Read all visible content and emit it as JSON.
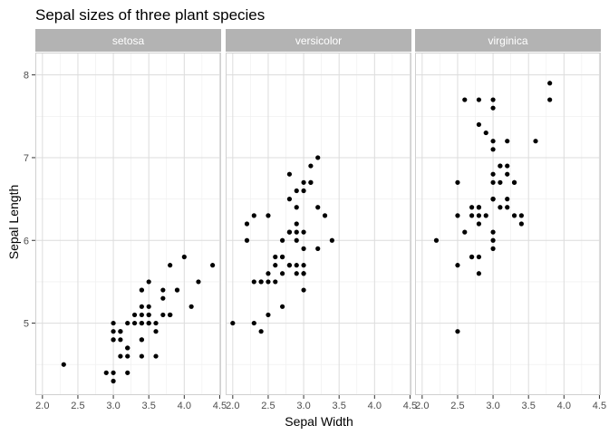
{
  "chart_data": {
    "type": "scatter",
    "title": "Sepal sizes of three plant species",
    "xlabel": "Sepal Width",
    "ylabel": "Sepal Length",
    "xlim": [
      1.9,
      4.52
    ],
    "ylim": [
      4.13,
      8.27
    ],
    "x_ticks": [
      {
        "value": 2.0,
        "label": "2.0"
      },
      {
        "value": 2.5,
        "label": "2.5"
      },
      {
        "value": 3.0,
        "label": "3.0"
      },
      {
        "value": 3.5,
        "label": "3.5"
      },
      {
        "value": 4.0,
        "label": "4.0"
      },
      {
        "value": 4.5,
        "label": "4.5"
      }
    ],
    "y_ticks": [
      {
        "value": 5,
        "label": "5"
      },
      {
        "value": 6,
        "label": "6"
      },
      {
        "value": 7,
        "label": "7"
      },
      {
        "value": 8,
        "label": "8"
      }
    ],
    "grid": true,
    "point_color": "#000000",
    "panel_border_color": "#d0d0d0",
    "grid_major_color": "#dcdcdc",
    "grid_minor_color": "#eeeeee",
    "strip_color": "#b3b3b3",
    "panels": [
      {
        "name": "setosa",
        "points": [
          [
            3.5,
            5.1
          ],
          [
            3.0,
            4.9
          ],
          [
            3.2,
            4.7
          ],
          [
            3.1,
            4.6
          ],
          [
            3.6,
            5.0
          ],
          [
            3.9,
            5.4
          ],
          [
            3.4,
            4.6
          ],
          [
            3.4,
            5.0
          ],
          [
            2.9,
            4.4
          ],
          [
            3.1,
            4.9
          ],
          [
            3.7,
            5.4
          ],
          [
            3.4,
            4.8
          ],
          [
            3.0,
            4.8
          ],
          [
            3.0,
            4.3
          ],
          [
            4.0,
            5.8
          ],
          [
            4.4,
            5.7
          ],
          [
            3.9,
            5.4
          ],
          [
            3.5,
            5.1
          ],
          [
            3.8,
            5.7
          ],
          [
            3.8,
            5.1
          ],
          [
            3.4,
            5.4
          ],
          [
            3.7,
            5.1
          ],
          [
            3.6,
            4.6
          ],
          [
            3.3,
            5.1
          ],
          [
            3.4,
            4.8
          ],
          [
            3.0,
            5.0
          ],
          [
            3.4,
            5.0
          ],
          [
            3.5,
            5.2
          ],
          [
            3.4,
            5.2
          ],
          [
            3.2,
            4.7
          ],
          [
            3.1,
            4.8
          ],
          [
            3.4,
            5.4
          ],
          [
            4.1,
            5.2
          ],
          [
            4.2,
            5.5
          ],
          [
            3.1,
            4.9
          ],
          [
            3.2,
            5.0
          ],
          [
            3.5,
            5.5
          ],
          [
            3.6,
            4.9
          ],
          [
            3.0,
            4.4
          ],
          [
            3.4,
            5.1
          ],
          [
            3.5,
            5.0
          ],
          [
            2.3,
            4.5
          ],
          [
            3.2,
            4.4
          ],
          [
            3.5,
            5.0
          ],
          [
            3.8,
            5.1
          ],
          [
            3.0,
            4.8
          ],
          [
            3.8,
            5.1
          ],
          [
            3.2,
            4.6
          ],
          [
            3.7,
            5.3
          ],
          [
            3.3,
            5.0
          ]
        ]
      },
      {
        "name": "versicolor",
        "points": [
          [
            3.2,
            7.0
          ],
          [
            3.2,
            6.4
          ],
          [
            3.1,
            6.9
          ],
          [
            2.3,
            5.5
          ],
          [
            2.8,
            6.5
          ],
          [
            2.8,
            5.7
          ],
          [
            3.3,
            6.3
          ],
          [
            2.4,
            4.9
          ],
          [
            2.9,
            6.6
          ],
          [
            2.7,
            5.2
          ],
          [
            2.0,
            5.0
          ],
          [
            3.0,
            5.9
          ],
          [
            2.2,
            6.0
          ],
          [
            2.9,
            6.1
          ],
          [
            2.9,
            5.6
          ],
          [
            3.1,
            6.7
          ],
          [
            3.0,
            5.6
          ],
          [
            2.7,
            5.8
          ],
          [
            2.2,
            6.2
          ],
          [
            2.5,
            5.6
          ],
          [
            3.2,
            5.9
          ],
          [
            2.8,
            6.1
          ],
          [
            2.5,
            6.3
          ],
          [
            2.8,
            6.1
          ],
          [
            2.9,
            6.4
          ],
          [
            3.0,
            6.6
          ],
          [
            2.8,
            6.8
          ],
          [
            3.0,
            6.7
          ],
          [
            2.9,
            6.0
          ],
          [
            2.6,
            5.7
          ],
          [
            2.4,
            5.5
          ],
          [
            2.4,
            5.5
          ],
          [
            2.7,
            5.8
          ],
          [
            2.7,
            6.0
          ],
          [
            3.0,
            5.4
          ],
          [
            3.4,
            6.0
          ],
          [
            3.1,
            6.7
          ],
          [
            2.3,
            6.3
          ],
          [
            3.0,
            5.6
          ],
          [
            2.5,
            5.5
          ],
          [
            2.6,
            5.5
          ],
          [
            3.0,
            6.1
          ],
          [
            2.6,
            5.8
          ],
          [
            2.3,
            5.0
          ],
          [
            2.7,
            5.6
          ],
          [
            3.0,
            5.7
          ],
          [
            2.9,
            5.7
          ],
          [
            2.9,
            6.2
          ],
          [
            2.5,
            5.1
          ],
          [
            2.8,
            5.7
          ]
        ]
      },
      {
        "name": "virginica",
        "points": [
          [
            3.3,
            6.3
          ],
          [
            2.7,
            5.8
          ],
          [
            3.0,
            7.1
          ],
          [
            2.9,
            6.3
          ],
          [
            3.0,
            6.5
          ],
          [
            3.0,
            7.6
          ],
          [
            2.5,
            4.9
          ],
          [
            2.9,
            7.3
          ],
          [
            2.5,
            6.7
          ],
          [
            3.6,
            7.2
          ],
          [
            3.2,
            6.5
          ],
          [
            2.7,
            6.4
          ],
          [
            3.0,
            6.8
          ],
          [
            2.5,
            5.7
          ],
          [
            2.8,
            5.8
          ],
          [
            3.2,
            6.4
          ],
          [
            3.0,
            6.5
          ],
          [
            3.8,
            7.7
          ],
          [
            2.6,
            7.7
          ],
          [
            2.2,
            6.0
          ],
          [
            3.2,
            6.9
          ],
          [
            2.8,
            5.6
          ],
          [
            2.8,
            7.7
          ],
          [
            2.7,
            6.3
          ],
          [
            3.3,
            6.7
          ],
          [
            3.2,
            7.2
          ],
          [
            2.8,
            6.2
          ],
          [
            3.0,
            6.1
          ],
          [
            2.8,
            6.4
          ],
          [
            3.0,
            7.2
          ],
          [
            2.8,
            7.4
          ],
          [
            3.8,
            7.9
          ],
          [
            2.8,
            6.4
          ],
          [
            2.8,
            6.3
          ],
          [
            2.6,
            6.1
          ],
          [
            3.0,
            7.7
          ],
          [
            3.4,
            6.3
          ],
          [
            3.1,
            6.4
          ],
          [
            3.0,
            6.0
          ],
          [
            3.1,
            6.9
          ],
          [
            3.1,
            6.7
          ],
          [
            3.1,
            6.9
          ],
          [
            2.7,
            5.8
          ],
          [
            3.2,
            6.8
          ],
          [
            3.3,
            6.7
          ],
          [
            3.0,
            6.7
          ],
          [
            2.5,
            6.3
          ],
          [
            3.0,
            6.5
          ],
          [
            3.4,
            6.2
          ],
          [
            3.0,
            5.9
          ]
        ]
      }
    ]
  }
}
